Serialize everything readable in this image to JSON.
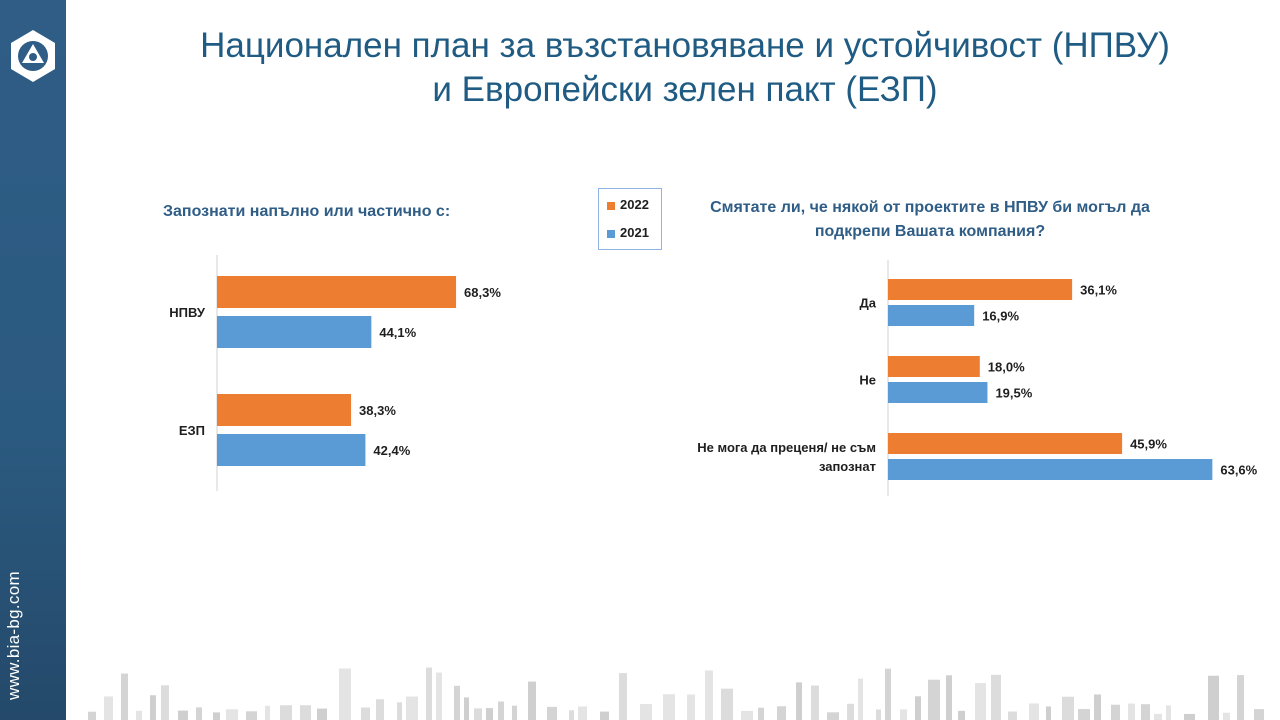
{
  "title": {
    "line1": "Национален план за възстановяване и устойчивост (НПВУ)",
    "line2": "и Европейски зелен пакт (ЕЗП)"
  },
  "sidebar": {
    "website": "www.bia-bg.com"
  },
  "legend": {
    "items": [
      {
        "label": "2022",
        "color": "#ed7d31"
      },
      {
        "label": "2021",
        "color": "#5b9bd5"
      }
    ]
  },
  "chart_data": [
    {
      "type": "bar",
      "orientation": "horizontal",
      "title": "Запознати напълно или частично с:",
      "categories": [
        "НПВУ",
        "ЕЗП"
      ],
      "series": [
        {
          "name": "2022",
          "color": "#ed7d31",
          "values": [
            68.3,
            38.3
          ],
          "labels": [
            "68,3%",
            "38,3%"
          ]
        },
        {
          "name": "2021",
          "color": "#5b9bd5",
          "values": [
            44.1,
            42.4
          ],
          "labels": [
            "44,1%",
            "42,4%"
          ]
        }
      ],
      "xlim": [
        0,
        100
      ],
      "grid": false,
      "legend": "top-center"
    },
    {
      "type": "bar",
      "orientation": "horizontal",
      "title": "Смятате ли, че някой от проектите в НПВУ би могъл да подкрепи Вашата компания?",
      "categories": [
        "Да",
        "Не",
        "Не мога да преценя/ не съм запознат"
      ],
      "series": [
        {
          "name": "2022",
          "color": "#ed7d31",
          "values": [
            36.1,
            18.0,
            45.9
          ],
          "labels": [
            "36,1%",
            "18,0%",
            "45,9%"
          ]
        },
        {
          "name": "2021",
          "color": "#5b9bd5",
          "values": [
            16.9,
            19.5,
            63.6
          ],
          "labels": [
            "16,9%",
            "19,5%",
            "63,6%"
          ]
        }
      ],
      "xlim": [
        0,
        100
      ],
      "grid": false,
      "legend": "top-center"
    }
  ]
}
